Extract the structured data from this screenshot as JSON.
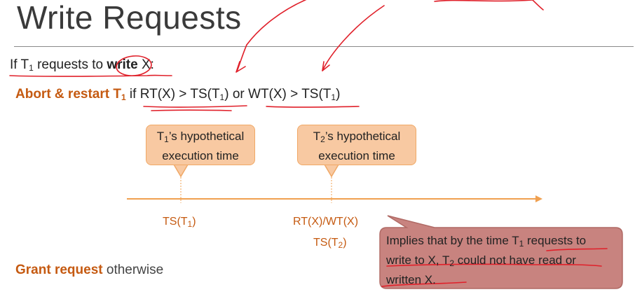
{
  "slide": {
    "title": "Write Requests"
  },
  "intro": {
    "if": "If T",
    "sub1": "1",
    "mid": " requests to ",
    "keyword": "write",
    "end": " X:"
  },
  "rule": {
    "action": "Abort & restart T",
    "action_sub": "1",
    "cond1": " if RT(X) > TS(T",
    "cond1_sub": "1",
    "cond1_end": ")",
    "or": " or ",
    "cond2": "WT(X) > TS(T",
    "cond2_sub": "1",
    "cond2_end": ")"
  },
  "callouts": [
    {
      "t": "T",
      "sub": "1",
      "line1": "’s hypothetical",
      "line2": "execution time"
    },
    {
      "t": "T",
      "sub": "2",
      "line1": "’s hypothetical",
      "line2": "execution time"
    }
  ],
  "timeline": {
    "ts1": {
      "pre": "TS(T",
      "sub": "1",
      "post": ")"
    },
    "rtwt": "RT(X)/WT(X)",
    "ts2": {
      "pre": "TS(T",
      "sub": "2",
      "post": ")"
    }
  },
  "grant": {
    "bold": "Grant request",
    "rest": " otherwise"
  },
  "implies": {
    "a": "Implies that by the time T",
    "a_sub": "1",
    "b": " requests to write to X, T",
    "b_sub": "2",
    "c": " could not have read or written X."
  },
  "colors": {
    "accent": "#c55a11",
    "callout_fill": "#f8c9a2",
    "ink": "#e0202a",
    "timeline": "#f0a050"
  }
}
